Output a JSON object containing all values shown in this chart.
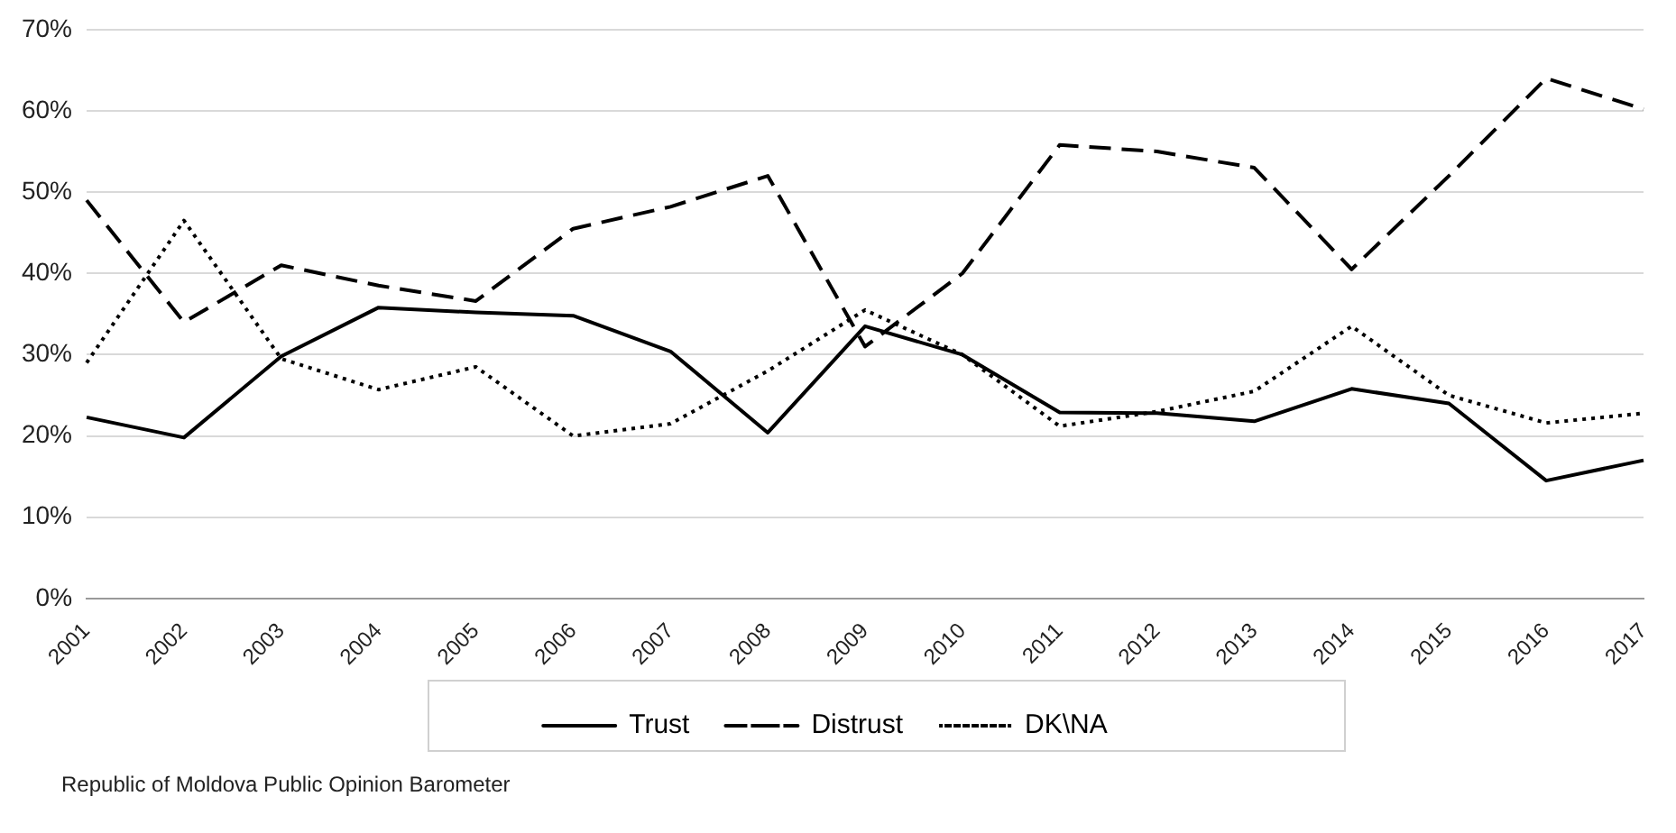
{
  "chart_data": {
    "type": "line",
    "categories": [
      "2001",
      "2002",
      "2003",
      "2004",
      "2005",
      "2006",
      "2007",
      "2008",
      "2009",
      "2010",
      "2011",
      "2012",
      "2013",
      "2014",
      "2015",
      "2016",
      "2017"
    ],
    "series": [
      {
        "name": "Trust",
        "color": "#000000",
        "line_style": "solid",
        "values": [
          22.3,
          19.8,
          29.8,
          35.8,
          35.2,
          34.8,
          30.4,
          20.4,
          33.5,
          30,
          22.9,
          22.8,
          21.8,
          25.8,
          24,
          14.5,
          17
        ]
      },
      {
        "name": "Distrust",
        "color": "#000000",
        "line_style": "dashed",
        "values": [
          49,
          34,
          41,
          38.5,
          36.6,
          45.5,
          48.2,
          52,
          31,
          40,
          55.8,
          55,
          53,
          40.5,
          52,
          64,
          60.2
        ]
      },
      {
        "name": "DK\\NA",
        "color": "#000000",
        "line_style": "dotted",
        "values": [
          29,
          46.5,
          29.5,
          25.7,
          28.5,
          20,
          21.5,
          28,
          35.5,
          30,
          21.2,
          23,
          25.5,
          33.5,
          25,
          21.6,
          22.8
        ]
      }
    ],
    "ylim": [
      0,
      70
    ],
    "yticks": [
      {
        "value": 0,
        "label": "0%"
      },
      {
        "value": 10,
        "label": "10%"
      },
      {
        "value": 20,
        "label": "20%"
      },
      {
        "value": 30,
        "label": "30%"
      },
      {
        "value": 40,
        "label": "40%"
      },
      {
        "value": 50,
        "label": "50%"
      },
      {
        "value": 60,
        "label": "60%"
      },
      {
        "value": 70,
        "label": "70%"
      }
    ],
    "grid": "y",
    "legend": "bottom",
    "marker": "none",
    "annotations": [
      "Republic of Moldova Public Opinion Barometer"
    ]
  }
}
